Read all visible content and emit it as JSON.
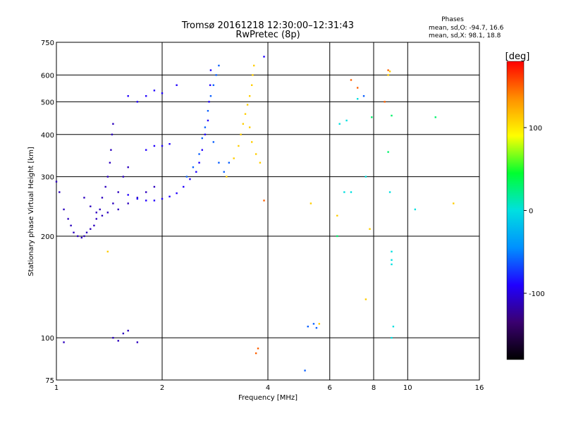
{
  "chart_data": {
    "type": "scatter",
    "title": "Tromsø 20161218 12:30:00–12:31:43",
    "subtitle": "RwPretec (8p)",
    "stats": {
      "heading": "Phases",
      "line1": "mean, sd,O: -94.7, 16.6",
      "line2": "mean, sd,X:  98.1, 18.8"
    },
    "xlabel": "Frequency [MHz]",
    "ylabel": "Stationary phase Virtual Height [km]",
    "x_scale": "log2",
    "y_scale": "log",
    "xlim": [
      1,
      16
    ],
    "ylim": [
      75,
      750
    ],
    "x_ticks": [
      1,
      2,
      4,
      6,
      8,
      10,
      16
    ],
    "y_ticks": [
      75,
      100,
      200,
      300,
      400,
      500,
      600,
      750
    ],
    "grid": true,
    "colorbar": {
      "label": "[deg]",
      "range": [
        -180,
        180
      ],
      "ticks": [
        100,
        0,
        -100
      ],
      "palette": [
        "#000000",
        "#3a0070",
        "#2000ff",
        "#0090ff",
        "#00e0e0",
        "#00ff30",
        "#ffff00",
        "#ff9000",
        "#ff0000"
      ]
    },
    "series": [
      {
        "phase": -110,
        "points": [
          [
            1.0,
            290
          ],
          [
            1.02,
            270
          ],
          [
            1.05,
            240
          ],
          [
            1.08,
            225
          ],
          [
            1.1,
            215
          ],
          [
            1.12,
            205
          ],
          [
            1.15,
            200
          ],
          [
            1.18,
            198
          ],
          [
            1.2,
            200
          ],
          [
            1.22,
            205
          ],
          [
            1.25,
            210
          ],
          [
            1.28,
            215
          ],
          [
            1.3,
            225
          ],
          [
            1.33,
            240
          ],
          [
            1.35,
            260
          ],
          [
            1.38,
            280
          ],
          [
            1.4,
            300
          ],
          [
            1.42,
            330
          ],
          [
            1.43,
            360
          ],
          [
            1.44,
            400
          ],
          [
            1.45,
            430
          ],
          [
            1.2,
            260
          ],
          [
            1.25,
            245
          ],
          [
            1.3,
            235
          ],
          [
            1.35,
            230
          ],
          [
            1.4,
            235
          ],
          [
            1.45,
            250
          ],
          [
            1.5,
            270
          ],
          [
            1.55,
            300
          ],
          [
            1.6,
            320
          ],
          [
            1.5,
            240
          ],
          [
            1.6,
            250
          ],
          [
            1.7,
            260
          ],
          [
            1.8,
            270
          ],
          [
            1.9,
            280
          ],
          [
            1.45,
            100
          ],
          [
            1.5,
            98
          ],
          [
            1.55,
            103
          ],
          [
            1.6,
            105
          ],
          [
            1.05,
            97
          ],
          [
            1.7,
            97
          ]
        ]
      },
      {
        "phase": -90,
        "points": [
          [
            1.6,
            265
          ],
          [
            1.7,
            258
          ],
          [
            1.8,
            255
          ],
          [
            1.9,
            255
          ],
          [
            2.0,
            258
          ],
          [
            2.1,
            262
          ],
          [
            2.2,
            268
          ],
          [
            2.3,
            280
          ],
          [
            2.4,
            295
          ],
          [
            2.5,
            310
          ],
          [
            2.55,
            330
          ],
          [
            2.6,
            360
          ],
          [
            2.65,
            400
          ],
          [
            2.7,
            440
          ],
          [
            2.72,
            500
          ],
          [
            2.74,
            560
          ],
          [
            2.75,
            620
          ],
          [
            1.8,
            360
          ],
          [
            1.9,
            370
          ],
          [
            2.0,
            370
          ],
          [
            2.1,
            375
          ],
          [
            1.6,
            520
          ],
          [
            1.7,
            500
          ],
          [
            1.8,
            520
          ],
          [
            1.9,
            540
          ],
          [
            2.0,
            530
          ],
          [
            2.2,
            560
          ],
          [
            3.9,
            680
          ]
        ]
      },
      {
        "phase": -60,
        "points": [
          [
            2.35,
            300
          ],
          [
            2.45,
            320
          ],
          [
            2.55,
            350
          ],
          [
            2.6,
            390
          ],
          [
            2.65,
            420
          ],
          [
            2.7,
            470
          ],
          [
            2.75,
            520
          ],
          [
            2.8,
            560
          ],
          [
            2.85,
            600
          ],
          [
            2.9,
            640
          ],
          [
            2.8,
            380
          ],
          [
            2.9,
            330
          ],
          [
            3.0,
            310
          ],
          [
            3.1,
            330
          ],
          [
            7.5,
            520
          ],
          [
            5.2,
            108
          ],
          [
            5.4,
            110
          ],
          [
            5.5,
            107
          ],
          [
            5.1,
            80
          ]
        ]
      },
      {
        "phase": 30,
        "points": [
          [
            6.3,
            200
          ],
          [
            8.8,
            355
          ],
          [
            12.0,
            450
          ],
          [
            9.0,
            455
          ],
          [
            7.9,
            450
          ]
        ]
      },
      {
        "phase": 110,
        "points": [
          [
            3.2,
            340
          ],
          [
            3.3,
            370
          ],
          [
            3.35,
            400
          ],
          [
            3.4,
            430
          ],
          [
            3.45,
            460
          ],
          [
            3.5,
            490
          ],
          [
            3.55,
            520
          ],
          [
            3.6,
            560
          ],
          [
            3.62,
            600
          ],
          [
            3.65,
            640
          ],
          [
            3.55,
            420
          ],
          [
            3.6,
            380
          ],
          [
            3.7,
            350
          ],
          [
            3.8,
            330
          ],
          [
            3.05,
            300
          ],
          [
            1.4,
            180
          ],
          [
            5.3,
            250
          ],
          [
            6.3,
            230
          ],
          [
            7.8,
            210
          ],
          [
            7.6,
            130
          ],
          [
            8.8,
            600
          ],
          [
            8.9,
            615
          ],
          [
            13.5,
            250
          ],
          [
            5.6,
            110
          ]
        ]
      },
      {
        "phase": 150,
        "points": [
          [
            3.9,
            255
          ],
          [
            3.75,
            93
          ],
          [
            3.7,
            90
          ],
          [
            6.9,
            580
          ],
          [
            7.2,
            550
          ],
          [
            8.6,
            500
          ],
          [
            8.8,
            620
          ]
        ]
      },
      {
        "phase": 0,
        "points": [
          [
            6.4,
            430
          ],
          [
            6.7,
            440
          ],
          [
            7.2,
            510
          ],
          [
            6.6,
            270
          ],
          [
            6.9,
            270
          ],
          [
            7.6,
            300
          ],
          [
            9.0,
            180
          ],
          [
            9.0,
            170
          ],
          [
            9.0,
            165
          ],
          [
            9.1,
            108
          ],
          [
            9.0,
            100
          ],
          [
            8.9,
            270
          ],
          [
            10.5,
            240
          ]
        ]
      }
    ]
  }
}
